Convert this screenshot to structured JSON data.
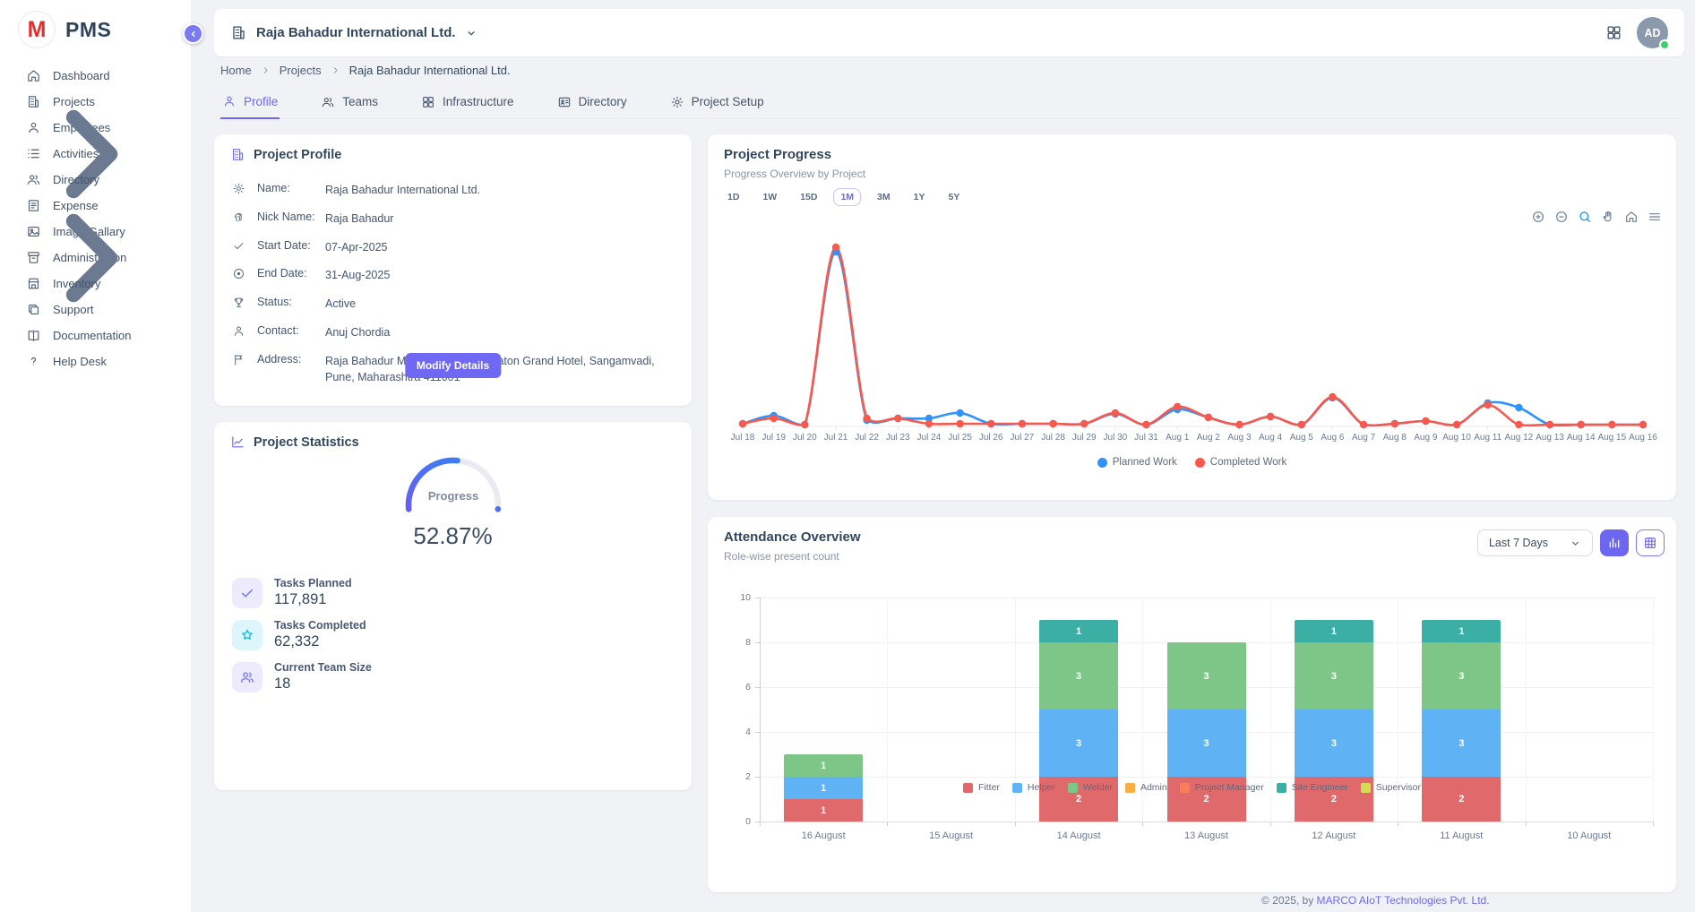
{
  "app": {
    "logo_letter": "M",
    "logo_text": "PMS"
  },
  "theme": {
    "accent": "#6d66f0",
    "link": "#6e68f2",
    "avatar_bg": "#8b99ad",
    "online_dot": "#3ecf6f"
  },
  "sidebar": {
    "items": [
      {
        "label": "Dashboard",
        "icon": "home",
        "has_submenu": false
      },
      {
        "label": "Projects",
        "icon": "building",
        "has_submenu": false
      },
      {
        "label": "Employees",
        "icon": "person",
        "has_submenu": false
      },
      {
        "label": "Activities",
        "icon": "list",
        "has_submenu": true
      },
      {
        "label": "Directory",
        "icon": "people",
        "has_submenu": false
      },
      {
        "label": "Expense",
        "icon": "receipt",
        "has_submenu": false
      },
      {
        "label": "Image Gallary",
        "icon": "image",
        "has_submenu": false
      },
      {
        "label": "Administration",
        "icon": "archive",
        "has_submenu": true
      },
      {
        "label": "Inventory",
        "icon": "store",
        "has_submenu": false
      },
      {
        "label": "Support",
        "icon": "copy",
        "has_submenu": false
      },
      {
        "label": "Documentation",
        "icon": "book",
        "has_submenu": false
      },
      {
        "label": "Help Desk",
        "icon": "help",
        "has_submenu": false
      }
    ]
  },
  "header": {
    "company_name": "Raja Bahadur International Ltd.",
    "avatar_initials": "AD"
  },
  "breadcrumb": {
    "items": [
      "Home",
      "Projects",
      "Raja Bahadur International Ltd."
    ]
  },
  "tabs": {
    "items": [
      {
        "label": "Profile",
        "icon": "person",
        "active": true
      },
      {
        "label": "Teams",
        "icon": "people",
        "active": false
      },
      {
        "label": "Infrastructure",
        "icon": "apps",
        "active": false
      },
      {
        "label": "Directory",
        "icon": "id-card",
        "active": false
      },
      {
        "label": "Project Setup",
        "icon": "gear",
        "active": false
      }
    ]
  },
  "profile_card": {
    "title": "Project Profile",
    "title_icon": "building",
    "fields": [
      {
        "icon": "gear",
        "label": "Name:",
        "value": "Raja Bahadur International Ltd."
      },
      {
        "icon": "fingerprint",
        "label": "Nick Name:",
        "value": "Raja Bahadur"
      },
      {
        "icon": "check",
        "label": "Start Date:",
        "value": "07-Apr-2025"
      },
      {
        "icon": "circle-dot",
        "label": "End Date:",
        "value": "31-Aug-2025"
      },
      {
        "icon": "trophy",
        "label": "Status:",
        "value": "Active"
      },
      {
        "icon": "person",
        "label": "Contact:",
        "value": "Anuj Chordia"
      },
      {
        "icon": "flag",
        "label": "Address:",
        "value": "Raja Bahadur Mill Rd, behind Sheraton Grand Hotel, Sangamvadi, Pune, Maharashtra 411001"
      }
    ],
    "button_label": "Modify Details"
  },
  "stats_card": {
    "title": "Project Statistics",
    "title_icon": "chart-line",
    "gauge": {
      "label": "Progress",
      "value_text": "52.87%",
      "percent": 52.87
    },
    "items": [
      {
        "icon": "check",
        "label": "Tasks Planned",
        "value": "117,891",
        "accent": "#7b70f4",
        "bg": "#ecebfd"
      },
      {
        "icon": "star",
        "label": "Tasks Completed",
        "value": "62,332",
        "accent": "#28c0e0",
        "bg": "#dcf6fb"
      },
      {
        "icon": "people",
        "label": "Current Team Size",
        "value": "18",
        "accent": "#8b80f6",
        "bg": "#ecebfd"
      }
    ]
  },
  "progress_card": {
    "title": "Project Progress",
    "subtitle": "Progress Overview by Project",
    "ranges": [
      "1D",
      "1W",
      "15D",
      "1M",
      "3M",
      "1Y",
      "5Y"
    ],
    "active_range": "1M",
    "toolbar_icons": [
      "zoom-in",
      "zoom-out",
      "magnifier",
      "hand",
      "home",
      "menu"
    ]
  },
  "attendance_card": {
    "title": "Attendance Overview",
    "subtitle": "Role-wise present count",
    "filter_label": "Last 7 Days"
  },
  "footer": {
    "text_prefix": "© 2025, by ",
    "link_text": "MARCO AIoT Technologies Pvt. Ltd."
  },
  "chart_data": [
    {
      "type": "line",
      "title": "Project Progress",
      "x": [
        "Jul 18",
        "Jul 19",
        "Jul 20",
        "Jul 21",
        "Jul 22",
        "Jul 23",
        "Jul 24",
        "Jul 25",
        "Jul 26",
        "Jul 27",
        "Jul 28",
        "Jul 29",
        "Jul 30",
        "Jul 31",
        "Aug 1",
        "Aug 2",
        "Aug 3",
        "Aug 4",
        "Aug 5",
        "Aug 6",
        "Aug 7",
        "Aug 8",
        "Aug 9",
        "Aug 10",
        "Aug 11",
        "Aug 12",
        "Aug 13",
        "Aug 14",
        "Aug 15",
        "Aug 16"
      ],
      "series": [
        {
          "name": "Planned Work",
          "color": "#2e93fa",
          "values": [
            0.3,
            1.2,
            0.2,
            19.5,
            0.7,
            0.9,
            0.9,
            1.5,
            0.3,
            0.3,
            0.3,
            0.3,
            1.4,
            0.2,
            1.9,
            1.0,
            0.2,
            1.1,
            0.2,
            3.2,
            0.2,
            0.3,
            0.6,
            0.2,
            2.6,
            2.1,
            0.2,
            0.2,
            0.2,
            0.2
          ]
        },
        {
          "name": "Completed Work",
          "color": "#f9594c",
          "values": [
            0.3,
            0.9,
            0.2,
            20,
            0.9,
            0.9,
            0.3,
            0.3,
            0.3,
            0.3,
            0.3,
            0.3,
            1.5,
            0.2,
            2.2,
            1.0,
            0.2,
            1.1,
            0.2,
            3.3,
            0.2,
            0.3,
            0.6,
            0.2,
            2.4,
            0.2,
            0.2,
            0.2,
            0.2,
            0.2
          ]
        }
      ],
      "ylim": [
        0,
        21
      ],
      "grid": false,
      "legend_position": "bottom"
    },
    {
      "type": "bar",
      "stacked": true,
      "title": "Attendance Overview",
      "categories": [
        "16 August",
        "15 August",
        "14 August",
        "13 August",
        "12 August",
        "11 August",
        "10 August"
      ],
      "series": [
        {
          "name": "Fitter",
          "color": "#e0696c",
          "values": [
            1,
            0,
            2,
            2,
            2,
            2,
            0
          ]
        },
        {
          "name": "Helper",
          "color": "#5fb2f4",
          "values": [
            1,
            0,
            3,
            3,
            3,
            3,
            0
          ]
        },
        {
          "name": "Welder",
          "color": "#7dc687",
          "values": [
            1,
            0,
            3,
            3,
            3,
            3,
            0
          ]
        },
        {
          "name": "Admin",
          "color": "#f9ad43",
          "values": [
            0,
            0,
            0,
            0,
            0,
            0,
            0
          ]
        },
        {
          "name": "Project Manager",
          "color": "#f97d5c",
          "values": [
            0,
            0,
            0,
            0,
            0,
            0,
            0
          ]
        },
        {
          "name": "Site Engineer",
          "color": "#3cafa4",
          "values": [
            0,
            0,
            1,
            0,
            1,
            1,
            0
          ]
        },
        {
          "name": "Supervisor",
          "color": "#d5de54",
          "values": [
            0,
            0,
            0,
            0,
            0,
            0,
            0
          ]
        }
      ],
      "ylim": [
        0,
        10
      ],
      "yticks": [
        0,
        2,
        4,
        6,
        8,
        10
      ],
      "legend_position": "bottom"
    }
  ]
}
